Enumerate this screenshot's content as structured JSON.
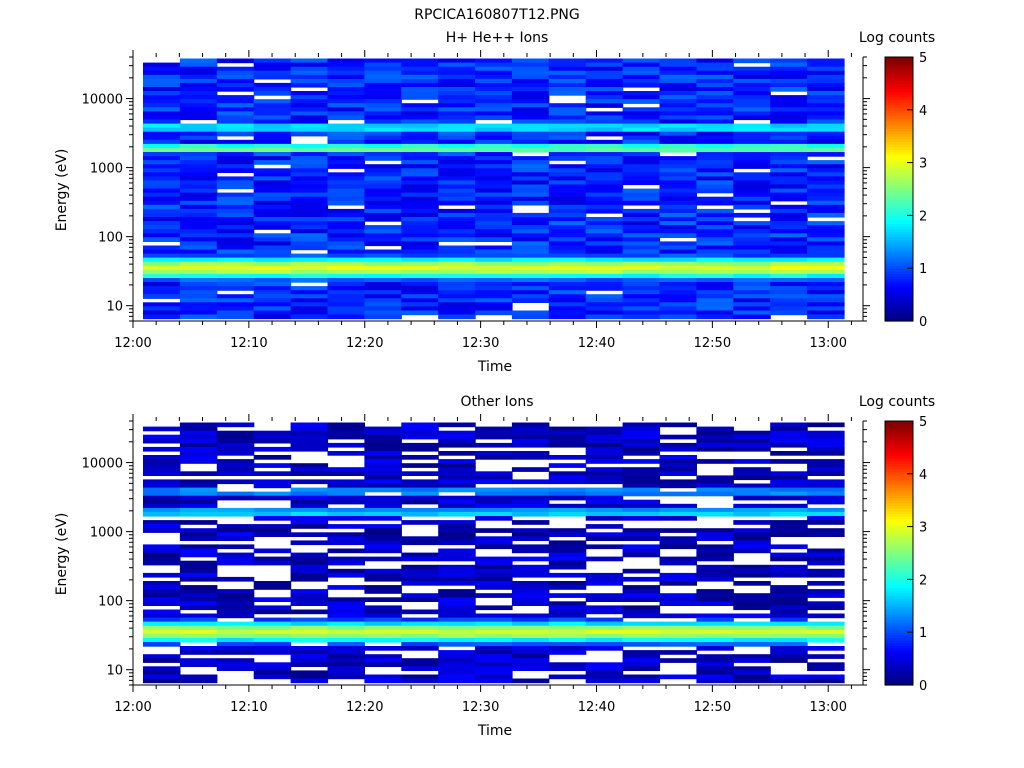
{
  "figure_title": "RPCICA160807T12.PNG",
  "chart_data": [
    {
      "type": "heatmap",
      "title": "H+ He++ Ions",
      "xlabel": "Time",
      "ylabel": "Energy (eV)",
      "x_ticks": [
        "12:00",
        "12:10",
        "12:20",
        "12:30",
        "12:40",
        "12:50",
        "13:00"
      ],
      "y_ticks": [
        "10",
        "100",
        "1000",
        "10000"
      ],
      "y_scale": "log",
      "ylim": [
        6,
        40000
      ],
      "xlim_minutes": [
        0,
        63
      ],
      "colorbar": {
        "label": "Log counts",
        "range": [
          0,
          5
        ],
        "ticks": [
          "0",
          "1",
          "2",
          "3",
          "4",
          "5"
        ],
        "colormap": "jet"
      },
      "bands": [
        {
          "energy_eV": 35,
          "log_counts": 3.0,
          "description": "bright band"
        },
        {
          "energy_eV": 1900,
          "log_counts": 2.6,
          "description": "bright band"
        },
        {
          "energy_eV": 3800,
          "log_counts": 2.0,
          "description": "moderate band"
        }
      ],
      "background_log_counts": 0.8
    },
    {
      "type": "heatmap",
      "title": "Other Ions",
      "xlabel": "Time",
      "ylabel": "Energy (eV)",
      "x_ticks": [
        "12:00",
        "12:10",
        "12:20",
        "12:30",
        "12:40",
        "12:50",
        "13:00"
      ],
      "y_ticks": [
        "10",
        "100",
        "1000",
        "10000"
      ],
      "y_scale": "log",
      "ylim": [
        6,
        40000
      ],
      "xlim_minutes": [
        0,
        63
      ],
      "colorbar": {
        "label": "Log counts",
        "range": [
          0,
          5
        ],
        "ticks": [
          "0",
          "1",
          "2",
          "3",
          "4",
          "5"
        ],
        "colormap": "jet"
      },
      "bands": [
        {
          "energy_eV": 35,
          "log_counts": 2.9,
          "description": "bright band"
        },
        {
          "energy_eV": 1900,
          "log_counts": 1.8,
          "description": "moderate band"
        },
        {
          "energy_eV": 3800,
          "log_counts": 1.5,
          "description": "moderate band"
        }
      ],
      "background_log_counts": 0.3
    }
  ]
}
